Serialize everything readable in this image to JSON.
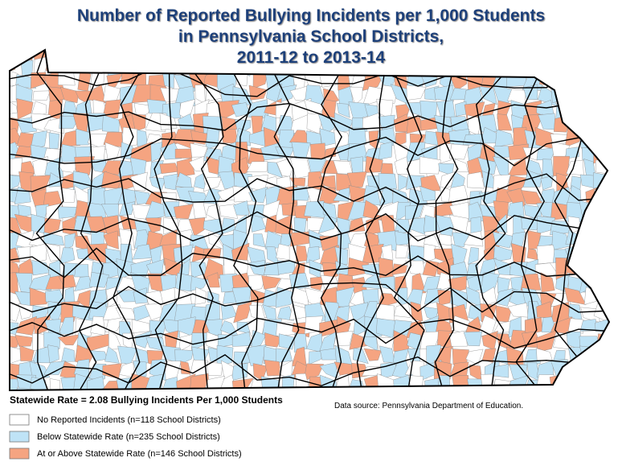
{
  "title": [
    "Number of Reported Bullying Incidents per 1,000 Students",
    "in Pennsylvania School Districts,",
    "2011-12 to 2013-14"
  ],
  "statewide_rate": "Statewide Rate = 2.08 Bullying Incidents Per 1,000 Students",
  "source": "Data source: Pennsylvania Department of Education.",
  "legend": [
    {
      "label": "No Reported Incidents (n=118 School Districts)",
      "color": "#ffffff"
    },
    {
      "label": "Below Statewide Rate (n=235 School Districts)",
      "color": "#bfe3f6"
    },
    {
      "label": "At or Above Statewide Rate (n=146 School Districts)",
      "color": "#f5a481"
    }
  ]
}
